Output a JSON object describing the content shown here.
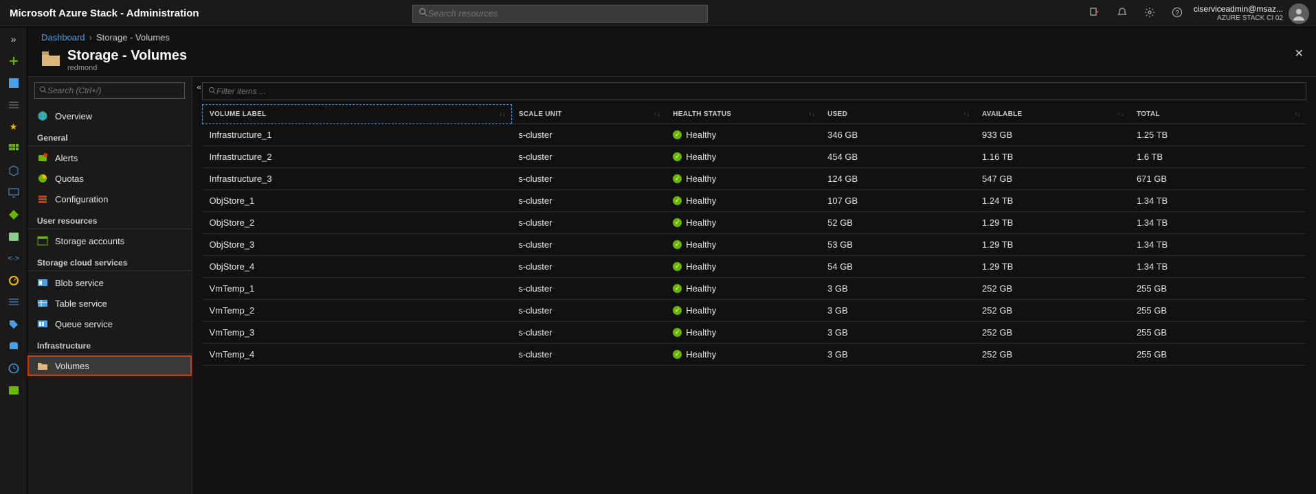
{
  "topbar": {
    "title": "Microsoft Azure Stack - Administration",
    "search_placeholder": "Search resources",
    "user_line1": "ciserviceadmin@msaz...",
    "user_line2": "AZURE STACK CI 02"
  },
  "breadcrumb": {
    "root": "Dashboard",
    "current": "Storage - Volumes"
  },
  "page": {
    "title": "Storage - Volumes",
    "subtitle": "redmond"
  },
  "sidepanel": {
    "search_placeholder": "Search (Ctrl+/)",
    "overview": "Overview",
    "sections": {
      "general": "General",
      "user_resources": "User resources",
      "storage_cloud": "Storage cloud services",
      "infrastructure": "Infrastructure"
    },
    "items": {
      "alerts": "Alerts",
      "quotas": "Quotas",
      "configuration": "Configuration",
      "storage_accounts": "Storage accounts",
      "blob_service": "Blob service",
      "table_service": "Table service",
      "queue_service": "Queue service",
      "volumes": "Volumes"
    }
  },
  "filter": {
    "placeholder": "Filter items ..."
  },
  "table": {
    "columns": {
      "volume": "VOLUME LABEL",
      "scale": "SCALE UNIT",
      "health": "HEALTH STATUS",
      "used": "USED",
      "available": "AVAILABLE",
      "total": "TOTAL"
    },
    "rows": [
      {
        "volume": "Infrastructure_1",
        "scale": "s-cluster",
        "health": "Healthy",
        "used": "346 GB",
        "available": "933 GB",
        "total": "1.25 TB"
      },
      {
        "volume": "Infrastructure_2",
        "scale": "s-cluster",
        "health": "Healthy",
        "used": "454 GB",
        "available": "1.16 TB",
        "total": "1.6 TB"
      },
      {
        "volume": "Infrastructure_3",
        "scale": "s-cluster",
        "health": "Healthy",
        "used": "124 GB",
        "available": "547 GB",
        "total": "671 GB"
      },
      {
        "volume": "ObjStore_1",
        "scale": "s-cluster",
        "health": "Healthy",
        "used": "107 GB",
        "available": "1.24 TB",
        "total": "1.34 TB"
      },
      {
        "volume": "ObjStore_2",
        "scale": "s-cluster",
        "health": "Healthy",
        "used": "52 GB",
        "available": "1.29 TB",
        "total": "1.34 TB"
      },
      {
        "volume": "ObjStore_3",
        "scale": "s-cluster",
        "health": "Healthy",
        "used": "53 GB",
        "available": "1.29 TB",
        "total": "1.34 TB"
      },
      {
        "volume": "ObjStore_4",
        "scale": "s-cluster",
        "health": "Healthy",
        "used": "54 GB",
        "available": "1.29 TB",
        "total": "1.34 TB"
      },
      {
        "volume": "VmTemp_1",
        "scale": "s-cluster",
        "health": "Healthy",
        "used": "3 GB",
        "available": "252 GB",
        "total": "255 GB"
      },
      {
        "volume": "VmTemp_2",
        "scale": "s-cluster",
        "health": "Healthy",
        "used": "3 GB",
        "available": "252 GB",
        "total": "255 GB"
      },
      {
        "volume": "VmTemp_3",
        "scale": "s-cluster",
        "health": "Healthy",
        "used": "3 GB",
        "available": "252 GB",
        "total": "255 GB"
      },
      {
        "volume": "VmTemp_4",
        "scale": "s-cluster",
        "health": "Healthy",
        "used": "3 GB",
        "available": "252 GB",
        "total": "255 GB"
      }
    ]
  },
  "colors": {
    "accent_blue": "#4aa0e6",
    "highlight_red": "#d83b01",
    "health_green": "#6bb700",
    "bg_dark": "#1b1a19"
  }
}
